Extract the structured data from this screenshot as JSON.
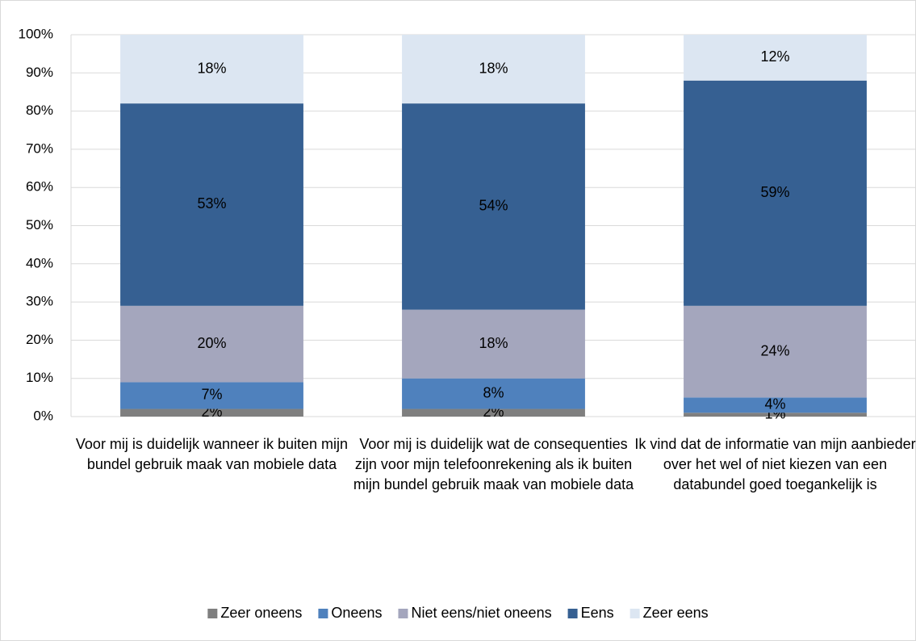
{
  "chart_data": {
    "type": "stacked_bar",
    "categories": [
      "Voor mij is duidelijk wanneer ik buiten mijn bundel gebruik maak van mobiele data",
      "Voor mij is duidelijk wat de consequenties zijn voor mijn telefoonrekening als ik buiten mijn bundel gebruik maak van mobiele data",
      "Ik vind dat de informatie van mijn aanbieder over het wel of niet kiezen van een databundel goed toegankelijk is"
    ],
    "series": [
      {
        "name": "Zeer oneens",
        "color": "#7f7f7f",
        "values": [
          2,
          2,
          1
        ],
        "value_labels": [
          "2%",
          "2%",
          "1%"
        ]
      },
      {
        "name": "Oneens",
        "color": "#4f81bd",
        "values": [
          7,
          8,
          4
        ],
        "value_labels": [
          "7%",
          "8%",
          "4%"
        ]
      },
      {
        "name": "Niet eens/niet oneens",
        "color": "#a4a6bd",
        "values": [
          20,
          18,
          24
        ],
        "value_labels": [
          "20%",
          "18%",
          "24%"
        ]
      },
      {
        "name": "Eens",
        "color": "#366092",
        "values": [
          53,
          54,
          59
        ],
        "value_labels": [
          "53%",
          "54%",
          "59%"
        ]
      },
      {
        "name": "Zeer eens",
        "color": "#dce6f2",
        "values": [
          18,
          18,
          12
        ],
        "value_labels": [
          "18%",
          "18%",
          "12%"
        ]
      }
    ],
    "ylim": [
      0,
      100
    ],
    "yticks": [
      {
        "value": 0,
        "label": "0%"
      },
      {
        "value": 10,
        "label": "10%"
      },
      {
        "value": 20,
        "label": "20%"
      },
      {
        "value": 30,
        "label": "30%"
      },
      {
        "value": 40,
        "label": "40%"
      },
      {
        "value": 50,
        "label": "50%"
      },
      {
        "value": 60,
        "label": "60%"
      },
      {
        "value": 70,
        "label": "70%"
      },
      {
        "value": 80,
        "label": "80%"
      },
      {
        "value": 90,
        "label": "90%"
      },
      {
        "value": 100,
        "label": "100%"
      }
    ],
    "grid": true,
    "legend": "bottom"
  }
}
